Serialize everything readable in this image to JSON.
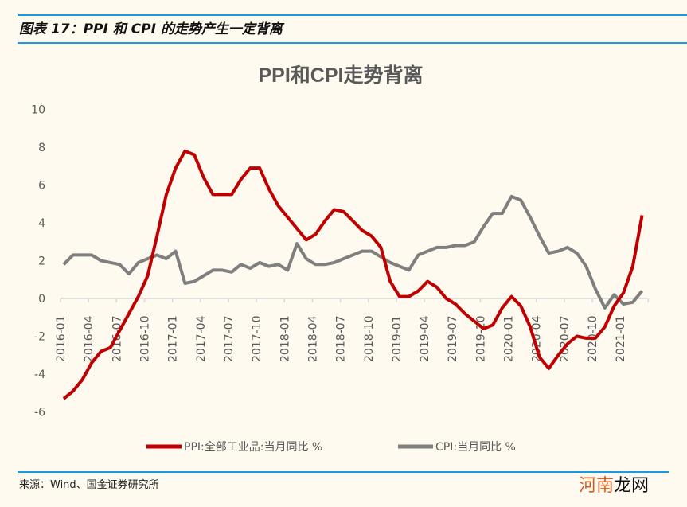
{
  "figure_title": "图表 17：PPI 和 CPI 的走势产生一定背离",
  "source": "来源：Wind、国金证券研究所",
  "watermark": {
    "part1": "河南",
    "part2": "龙网"
  },
  "colors": {
    "ppi": "#c00000",
    "cpi": "#7f7f7f",
    "rule": "#1a9be0",
    "background": "#fffaf0"
  },
  "chart_data": {
    "type": "line",
    "title": "PPI和CPI走势背离",
    "ylim": [
      -6,
      10
    ],
    "yticks": [
      -6,
      -4,
      -2,
      0,
      2,
      4,
      6,
      8,
      10
    ],
    "xtick_labels": [
      "2016-01",
      "2016-04",
      "2016-07",
      "2016-10",
      "2017-01",
      "2017-04",
      "2017-07",
      "2017-10",
      "2018-01",
      "2018-04",
      "2018-07",
      "2018-10",
      "2019-01",
      "2019-04",
      "2019-07",
      "2019-10",
      "2020-01",
      "2020-04",
      "2020-07",
      "2020-10",
      "2021-01"
    ],
    "x_start": "2016-01",
    "x_end": "2021-03",
    "legend_position": "bottom",
    "grid": false,
    "series": [
      {
        "name": "PPI:全部工业品:当月同比 %",
        "values": [
          -5.3,
          -4.9,
          -4.3,
          -3.4,
          -2.8,
          -2.6,
          -1.7,
          -0.8,
          0.1,
          1.2,
          3.3,
          5.5,
          6.9,
          7.8,
          7.6,
          6.4,
          5.5,
          5.5,
          5.5,
          6.3,
          6.9,
          6.9,
          5.8,
          4.9,
          4.3,
          3.7,
          3.1,
          3.4,
          4.1,
          4.7,
          4.6,
          4.1,
          3.6,
          3.3,
          2.7,
          0.9,
          0.1,
          0.1,
          0.4,
          0.9,
          0.6,
          0.0,
          -0.3,
          -0.8,
          -1.2,
          -1.6,
          -1.4,
          -0.5,
          0.1,
          -0.4,
          -1.5,
          -3.1,
          -3.7,
          -3.0,
          -2.4,
          -2.0,
          -2.1,
          -2.1,
          -1.5,
          -0.4,
          0.3,
          1.7,
          4.4
        ]
      },
      {
        "name": "CPI:当月同比 %",
        "values": [
          1.8,
          2.3,
          2.3,
          2.3,
          2.0,
          1.9,
          1.8,
          1.3,
          1.9,
          2.1,
          2.3,
          2.1,
          2.5,
          0.8,
          0.9,
          1.2,
          1.5,
          1.5,
          1.4,
          1.8,
          1.6,
          1.9,
          1.7,
          1.8,
          1.5,
          2.9,
          2.1,
          1.8,
          1.8,
          1.9,
          2.1,
          2.3,
          2.5,
          2.5,
          2.2,
          1.9,
          1.7,
          1.5,
          2.3,
          2.5,
          2.7,
          2.7,
          2.8,
          2.8,
          3.0,
          3.8,
          4.5,
          4.5,
          5.4,
          5.2,
          4.3,
          3.3,
          2.4,
          2.5,
          2.7,
          2.4,
          1.7,
          0.5,
          -0.5,
          0.2,
          -0.3,
          -0.2,
          0.4
        ]
      }
    ]
  }
}
